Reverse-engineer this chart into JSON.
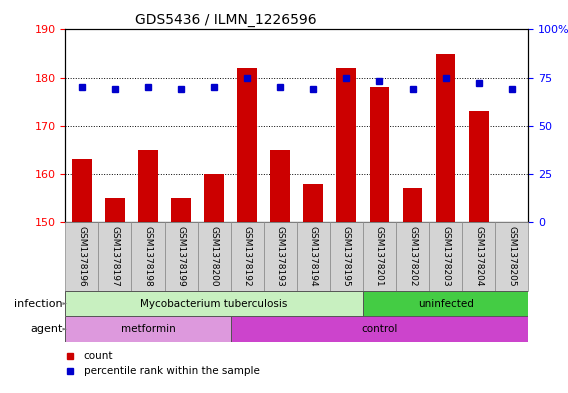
{
  "title": "GDS5436 / ILMN_1226596",
  "samples": [
    "GSM1378196",
    "GSM1378197",
    "GSM1378198",
    "GSM1378199",
    "GSM1378200",
    "GSM1378192",
    "GSM1378193",
    "GSM1378194",
    "GSM1378195",
    "GSM1378201",
    "GSM1378202",
    "GSM1378203",
    "GSM1378204",
    "GSM1378205"
  ],
  "bar_values": [
    163,
    155,
    165,
    155,
    160,
    182,
    165,
    158,
    182,
    178,
    157,
    185,
    173,
    150
  ],
  "percentile_values": [
    70,
    69,
    70,
    69,
    70,
    75,
    70,
    69,
    75,
    73,
    69,
    75,
    72,
    69
  ],
  "ylim_left": [
    150,
    190
  ],
  "ylim_right": [
    0,
    100
  ],
  "yticks_left": [
    150,
    160,
    170,
    180,
    190
  ],
  "yticks_right": [
    0,
    25,
    50,
    75,
    100
  ],
  "bar_color": "#cc0000",
  "dot_color": "#0000cc",
  "infection_groups": [
    {
      "label": "Mycobacterium tuberculosis",
      "start": 0,
      "end": 9,
      "color": "#b8f0b0"
    },
    {
      "label": "uninfected",
      "start": 9,
      "end": 14,
      "color": "#66dd66"
    }
  ],
  "agent_groups": [
    {
      "label": "metformin",
      "start": 0,
      "end": 5,
      "color": "#dd88dd"
    },
    {
      "label": "control",
      "start": 5,
      "end": 14,
      "color": "#cc44cc"
    }
  ],
  "infection_label": "infection",
  "agent_label": "agent",
  "legend_count_label": "count",
  "legend_pct_label": "percentile rank within the sample",
  "sample_bg_color": "#d4d4d4",
  "plot_bg": "#ffffff"
}
